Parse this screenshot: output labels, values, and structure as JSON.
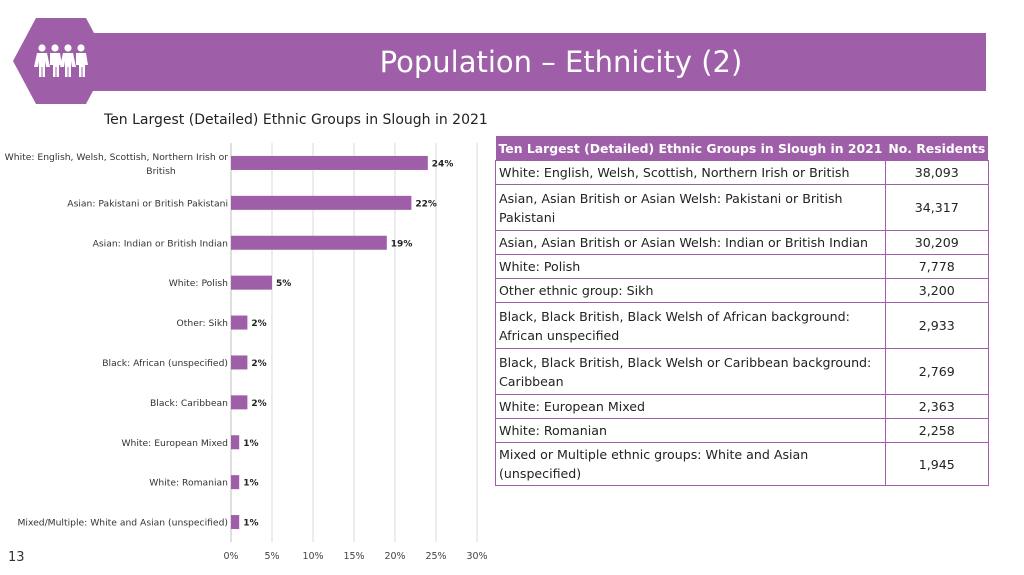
{
  "page": {
    "title": "Population – Ethnicity (2)",
    "page_number": "13",
    "header_icon": "people-group-icon",
    "accent_color": "#9e5ea8"
  },
  "chart_data": {
    "type": "bar",
    "orientation": "horizontal",
    "title": "Ten Largest (Detailed) Ethnic Groups in Slough in 2021",
    "categories": [
      "White: English, Welsh, Scottish, Northern Irish or British",
      "Asian: Pakistani or British Pakistani",
      "Asian: Indian or British Indian",
      "White: Polish",
      "Other: Sikh",
      "Black: African (unspecified)",
      "Black: Caribbean",
      "White: European Mixed",
      "White: Romanian",
      "Mixed/Multiple: White and Asian (unspecified)"
    ],
    "values": [
      24,
      22,
      19,
      5,
      2,
      2,
      2,
      1,
      1,
      1
    ],
    "data_labels": [
      "24%",
      "22%",
      "19%",
      "5%",
      "2%",
      "2%",
      "2%",
      "1%",
      "1%",
      "1%"
    ],
    "x_ticks": [
      "0%",
      "5%",
      "10%",
      "15%",
      "20%",
      "25%",
      "30%"
    ],
    "xlim": [
      0,
      30
    ],
    "grid": true,
    "bar_color": "#9e5ea8"
  },
  "table": {
    "headers": [
      "Ten Largest (Detailed) Ethnic Groups in Slough in 2021",
      "No. Residents"
    ],
    "rows": [
      {
        "group": "White: English, Welsh, Scottish, Northern Irish or British",
        "residents": "38,093"
      },
      {
        "group": "Asian, Asian British or Asian Welsh: Pakistani or British Pakistani",
        "residents": "34,317"
      },
      {
        "group": "Asian, Asian British or Asian Welsh: Indian or British Indian",
        "residents": "30,209"
      },
      {
        "group": "White: Polish",
        "residents": "7,778"
      },
      {
        "group": "Other ethnic group: Sikh",
        "residents": "3,200"
      },
      {
        "group": "Black, Black British, Black Welsh of African background: African unspecified",
        "residents": "2,933"
      },
      {
        "group": "Black, Black British, Black Welsh or Caribbean background: Caribbean",
        "residents": "2,769"
      },
      {
        "group": "White: European Mixed",
        "residents": "2,363"
      },
      {
        "group": "White: Romanian",
        "residents": "2,258"
      },
      {
        "group": "Mixed or Multiple ethnic groups: White and Asian (unspecified)",
        "residents": "1,945"
      }
    ]
  }
}
